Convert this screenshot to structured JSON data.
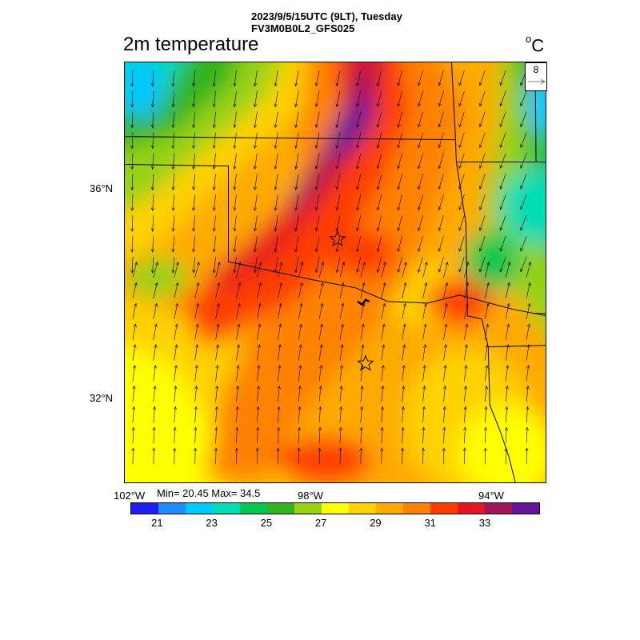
{
  "header": {
    "time_line": "2023/9/5/15UTC (9LT), Tuesday",
    "model_line": "FV3M0B0L2_GFS025"
  },
  "field": {
    "title": "2m temperature",
    "units": "C"
  },
  "stats": {
    "text": "Min= 20.45 Max= 34.5"
  },
  "wind_reference": {
    "value": "8"
  },
  "axes": {
    "lat_labels": [
      "36°N",
      "32°N"
    ],
    "lon_labels": [
      "102°W",
      "98°W",
      "94°W"
    ]
  },
  "colorbar": {
    "colors": [
      "#1e1ef0",
      "#1e8cff",
      "#00c8ff",
      "#00dcb4",
      "#00c850",
      "#32b41e",
      "#96d214",
      "#ffff00",
      "#ffd200",
      "#ffaa00",
      "#ff8200",
      "#ff3c00",
      "#e6141e",
      "#a0145a",
      "#641496"
    ],
    "labels": [
      "21",
      "23",
      "25",
      "27",
      "29",
      "31",
      "33"
    ]
  },
  "map": {
    "markers": [
      "star",
      "star"
    ]
  }
}
